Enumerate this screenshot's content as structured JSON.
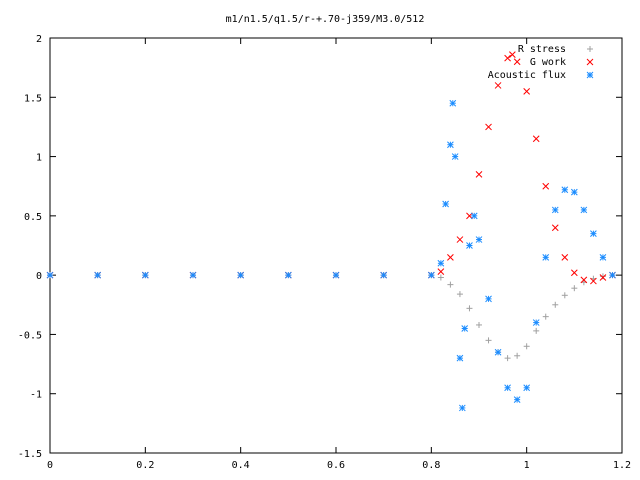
{
  "chart_data": {
    "type": "scatter",
    "title": "m1/n1.5/q1.5/r-+.70-j359/M3.0/512",
    "xlabel": "",
    "ylabel": "",
    "xlim": [
      0,
      1.2
    ],
    "ylim": [
      -1.5,
      2
    ],
    "x_ticks": [
      "0",
      "0.2",
      "0.4",
      "0.6",
      "0.8",
      "1",
      "1.2"
    ],
    "y_ticks": [
      "-1.5",
      "-1",
      "-0.5",
      "0",
      "0.5",
      "1",
      "1.5",
      "2"
    ],
    "grid": false,
    "legend_position": "top-right",
    "series": [
      {
        "name": "R stress",
        "marker": "+",
        "color": "#a0a0a0",
        "points": [
          [
            0.0,
            0
          ],
          [
            0.1,
            0
          ],
          [
            0.2,
            0
          ],
          [
            0.3,
            0
          ],
          [
            0.4,
            0
          ],
          [
            0.5,
            0
          ],
          [
            0.6,
            0
          ],
          [
            0.7,
            0
          ],
          [
            0.8,
            0
          ],
          [
            0.82,
            -0.02
          ],
          [
            0.84,
            -0.08
          ],
          [
            0.86,
            -0.16
          ],
          [
            0.88,
            -0.28
          ],
          [
            0.9,
            -0.42
          ],
          [
            0.92,
            -0.55
          ],
          [
            0.94,
            -0.65
          ],
          [
            0.96,
            -0.7
          ],
          [
            0.98,
            -0.68
          ],
          [
            1.0,
            -0.6
          ],
          [
            1.02,
            -0.47
          ],
          [
            1.04,
            -0.35
          ],
          [
            1.06,
            -0.25
          ],
          [
            1.08,
            -0.17
          ],
          [
            1.1,
            -0.11
          ],
          [
            1.12,
            -0.06
          ],
          [
            1.14,
            -0.03
          ],
          [
            1.16,
            -0.01
          ],
          [
            1.18,
            0
          ]
        ]
      },
      {
        "name": "G work",
        "marker": "x",
        "color": "#ff0000",
        "points": [
          [
            0.0,
            0
          ],
          [
            0.1,
            0
          ],
          [
            0.2,
            0
          ],
          [
            0.3,
            0
          ],
          [
            0.4,
            0
          ],
          [
            0.5,
            0
          ],
          [
            0.6,
            0
          ],
          [
            0.7,
            0
          ],
          [
            0.8,
            0
          ],
          [
            0.82,
            0.03
          ],
          [
            0.84,
            0.15
          ],
          [
            0.86,
            0.3
          ],
          [
            0.88,
            0.5
          ],
          [
            0.9,
            0.85
          ],
          [
            0.92,
            1.25
          ],
          [
            0.94,
            1.6
          ],
          [
            0.96,
            1.83
          ],
          [
            0.97,
            1.86
          ],
          [
            0.98,
            1.8
          ],
          [
            1.0,
            1.55
          ],
          [
            1.02,
            1.15
          ],
          [
            1.04,
            0.75
          ],
          [
            1.06,
            0.4
          ],
          [
            1.08,
            0.15
          ],
          [
            1.1,
            0.02
          ],
          [
            1.12,
            -0.04
          ],
          [
            1.14,
            -0.05
          ],
          [
            1.16,
            -0.02
          ],
          [
            1.18,
            0
          ]
        ]
      },
      {
        "name": "Acoustic flux",
        "marker": "*",
        "color": "#1a8cff",
        "points": [
          [
            0.0,
            0
          ],
          [
            0.1,
            0
          ],
          [
            0.2,
            0
          ],
          [
            0.3,
            0
          ],
          [
            0.4,
            0
          ],
          [
            0.5,
            0
          ],
          [
            0.6,
            0
          ],
          [
            0.7,
            0
          ],
          [
            0.8,
            0
          ],
          [
            0.82,
            0.1
          ],
          [
            0.83,
            0.6
          ],
          [
            0.84,
            1.1
          ],
          [
            0.845,
            1.45
          ],
          [
            0.85,
            1.0
          ],
          [
            0.86,
            -0.7
          ],
          [
            0.865,
            -1.12
          ],
          [
            0.87,
            -0.45
          ],
          [
            0.88,
            0.25
          ],
          [
            0.89,
            0.5
          ],
          [
            0.9,
            0.3
          ],
          [
            0.92,
            -0.2
          ],
          [
            0.94,
            -0.65
          ],
          [
            0.96,
            -0.95
          ],
          [
            0.98,
            -1.05
          ],
          [
            1.0,
            -0.95
          ],
          [
            1.02,
            -0.4
          ],
          [
            1.04,
            0.15
          ],
          [
            1.06,
            0.55
          ],
          [
            1.08,
            0.72
          ],
          [
            1.1,
            0.7
          ],
          [
            1.12,
            0.55
          ],
          [
            1.14,
            0.35
          ],
          [
            1.16,
            0.15
          ],
          [
            1.18,
            0
          ]
        ]
      }
    ]
  }
}
